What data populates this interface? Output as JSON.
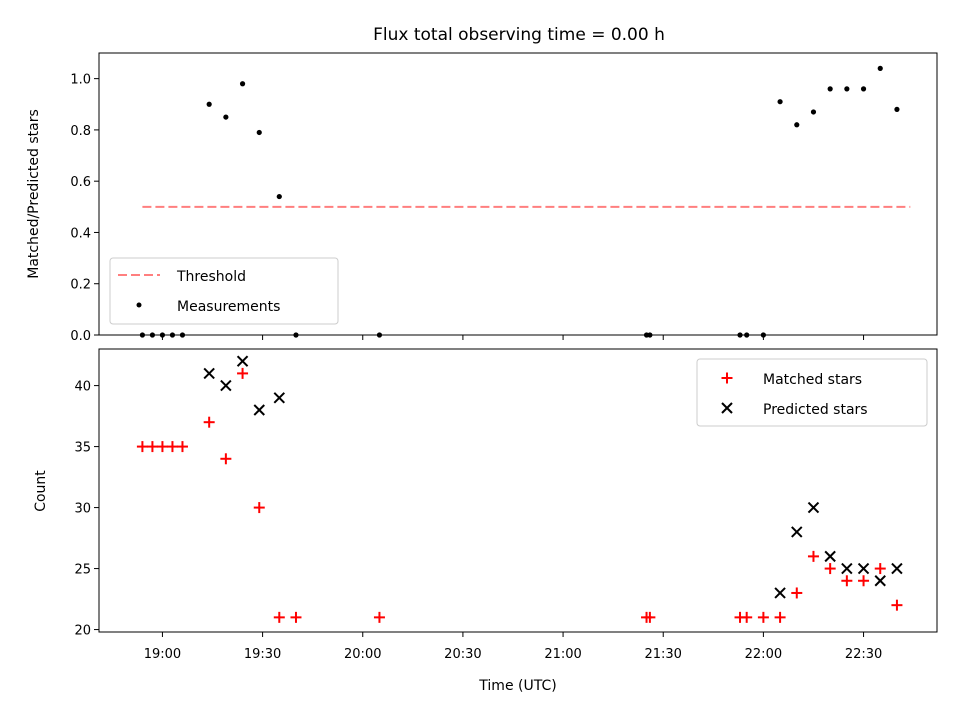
{
  "chart_data": [
    {
      "type": "scatter",
      "title": "Flux total observing time = 0.00 h",
      "xlabel": "",
      "ylabel": "Matched/Predicted stars",
      "ylim": [
        0,
        1.1
      ],
      "yticks": [
        "0.0",
        "0.2",
        "0.4",
        "0.6",
        "0.8",
        "1.0"
      ],
      "ytick_values": [
        0,
        0.2,
        0.4,
        0.6,
        0.8,
        1.0
      ],
      "legend_position": "lower-left",
      "threshold": {
        "name": "Threshold",
        "value": 0.5,
        "x_start": "18:54",
        "x_end": "22:44",
        "color": "#ff7f7f"
      },
      "series": [
        {
          "name": "Measurements",
          "color": "#000000",
          "points": [
            [
              "18:54",
              0.0
            ],
            [
              "18:57",
              0.0
            ],
            [
              "19:00",
              0.0
            ],
            [
              "19:03",
              0.0
            ],
            [
              "19:06",
              0.0
            ],
            [
              "19:14",
              0.9
            ],
            [
              "19:19",
              0.85
            ],
            [
              "19:24",
              0.98
            ],
            [
              "19:29",
              0.79
            ],
            [
              "19:35",
              0.54
            ],
            [
              "19:40",
              0.0
            ],
            [
              "20:05",
              0.0
            ],
            [
              "21:25",
              0.0
            ],
            [
              "21:26",
              0.0
            ],
            [
              "21:53",
              0.0
            ],
            [
              "21:55",
              0.0
            ],
            [
              "22:00",
              0.0
            ],
            [
              "22:05",
              0.91
            ],
            [
              "22:10",
              0.82
            ],
            [
              "22:15",
              0.87
            ],
            [
              "22:20",
              0.96
            ],
            [
              "22:25",
              0.96
            ],
            [
              "22:30",
              0.96
            ],
            [
              "22:35",
              1.04
            ],
            [
              "22:40",
              0.88
            ]
          ]
        }
      ]
    },
    {
      "type": "scatter",
      "title": "",
      "xlabel": "Time (UTC)",
      "ylabel": "Count",
      "ylim": [
        19.8,
        43.0
      ],
      "yticks": [
        "20",
        "25",
        "30",
        "35",
        "40"
      ],
      "ytick_values": [
        20,
        25,
        30,
        35,
        40
      ],
      "xlim": [
        "18:41",
        "22:52"
      ],
      "xticks": [
        "19:00",
        "19:30",
        "20:00",
        "20:30",
        "21:00",
        "21:30",
        "22:00",
        "22:30"
      ],
      "legend_position": "top-right",
      "series": [
        {
          "name": "Matched stars",
          "marker": "+",
          "color": "#ff0000",
          "points": [
            [
              "18:54",
              35
            ],
            [
              "18:57",
              35
            ],
            [
              "19:00",
              35
            ],
            [
              "19:03",
              35
            ],
            [
              "19:06",
              35
            ],
            [
              "19:14",
              37
            ],
            [
              "19:19",
              34
            ],
            [
              "19:24",
              41
            ],
            [
              "19:29",
              30
            ],
            [
              "19:35",
              21
            ],
            [
              "19:40",
              21
            ],
            [
              "20:05",
              21
            ],
            [
              "21:25",
              21
            ],
            [
              "21:26",
              21
            ],
            [
              "21:53",
              21
            ],
            [
              "21:55",
              21
            ],
            [
              "22:00",
              21
            ],
            [
              "22:05",
              21
            ],
            [
              "22:10",
              23
            ],
            [
              "22:15",
              26
            ],
            [
              "22:20",
              25
            ],
            [
              "22:25",
              24
            ],
            [
              "22:30",
              24
            ],
            [
              "22:35",
              25
            ],
            [
              "22:40",
              22
            ]
          ]
        },
        {
          "name": "Predicted stars",
          "marker": "x",
          "color": "#000000",
          "points": [
            [
              "19:14",
              41
            ],
            [
              "19:19",
              40
            ],
            [
              "19:24",
              42
            ],
            [
              "19:29",
              38
            ],
            [
              "19:35",
              39
            ],
            [
              "22:05",
              23
            ],
            [
              "22:10",
              28
            ],
            [
              "22:15",
              30
            ],
            [
              "22:20",
              26
            ],
            [
              "22:25",
              25
            ],
            [
              "22:30",
              25
            ],
            [
              "22:35",
              24
            ],
            [
              "22:40",
              25
            ]
          ]
        }
      ]
    }
  ]
}
